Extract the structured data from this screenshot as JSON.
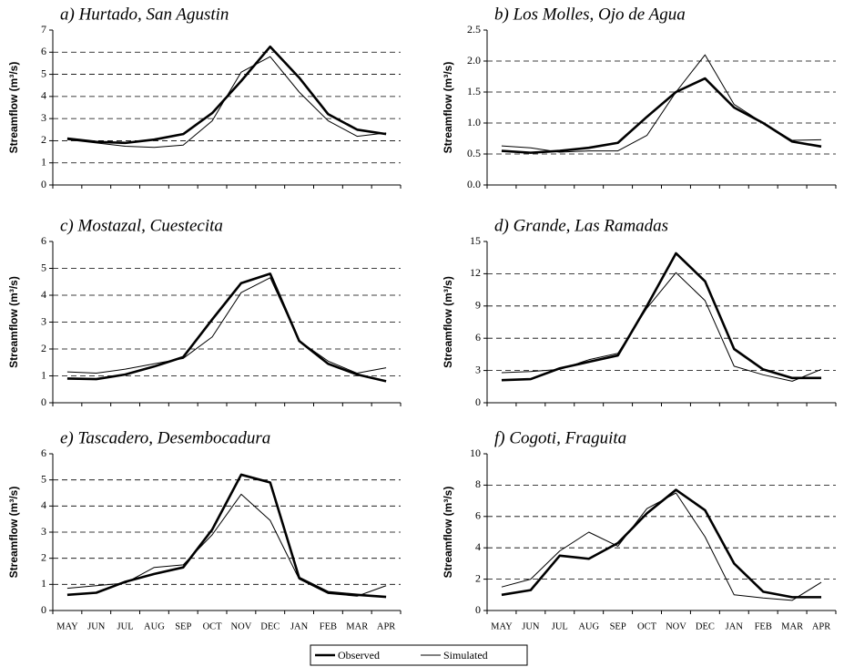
{
  "chart_data": [
    {
      "type": "line",
      "title": "a) Hurtado, San Agustin",
      "y_label": "Streamflow (m³/s)",
      "categories": [
        null,
        null,
        null,
        null,
        null,
        null,
        null,
        null,
        null,
        null,
        null,
        null
      ],
      "ylim": [
        0,
        7
      ],
      "yticks": [
        0,
        1,
        2,
        3,
        4,
        5,
        6,
        7
      ],
      "grid": true,
      "series": [
        {
          "name": "Observed",
          "color": "#000000",
          "values": [
            2.1,
            1.95,
            1.9,
            2.05,
            2.3,
            3.25,
            4.7,
            6.25,
            4.85,
            3.2,
            2.5,
            2.3
          ]
        },
        {
          "name": "Simulated",
          "color": "#000000",
          "values": [
            2.05,
            1.9,
            1.75,
            1.7,
            1.8,
            2.9,
            5.1,
            5.8,
            4.2,
            2.9,
            2.2,
            2.35
          ]
        }
      ]
    },
    {
      "type": "line",
      "title": "b) Los Molles, Ojo de Agua",
      "y_label": "Streamflow (m³/s)",
      "categories": [
        null,
        null,
        null,
        null,
        null,
        null,
        null,
        null,
        null,
        null,
        null,
        null
      ],
      "ylim": [
        0,
        2.5
      ],
      "yticks": [
        {
          "value": 0,
          "label": "0.0"
        },
        0.5,
        {
          "value": 1,
          "label": "1.0"
        },
        1.5,
        {
          "value": 2,
          "label": "2.0"
        },
        2.5
      ],
      "grid": true,
      "series": [
        {
          "name": "Observed",
          "color": "#000000",
          "values": [
            0.55,
            0.52,
            0.55,
            0.6,
            0.68,
            1.1,
            1.5,
            1.72,
            1.25,
            1.0,
            0.7,
            0.62
          ]
        },
        {
          "name": "Simulated",
          "color": "#000000",
          "values": [
            0.63,
            0.6,
            0.53,
            0.55,
            0.55,
            0.8,
            1.5,
            2.1,
            1.3,
            1.0,
            0.72,
            0.73
          ]
        }
      ]
    },
    {
      "type": "line",
      "title": "c) Mostazal, Cuestecita",
      "y_label": "Streamflow (m³/s)",
      "categories": [
        null,
        null,
        null,
        null,
        null,
        null,
        null,
        null,
        null,
        null,
        null,
        null
      ],
      "ylim": [
        0,
        6
      ],
      "yticks": [
        0,
        1,
        2,
        3,
        4,
        5,
        6
      ],
      "grid": true,
      "series": [
        {
          "name": "Observed",
          "color": "#000000",
          "values": [
            0.9,
            0.88,
            1.05,
            1.35,
            1.7,
            3.1,
            4.45,
            4.8,
            2.3,
            1.45,
            1.05,
            0.8
          ]
        },
        {
          "name": "Simulated",
          "color": "#000000",
          "values": [
            1.15,
            1.1,
            1.25,
            1.45,
            1.65,
            2.45,
            4.1,
            4.65,
            2.3,
            1.55,
            1.1,
            1.3
          ]
        }
      ]
    },
    {
      "type": "line",
      "title": "d) Grande, Las Ramadas",
      "y_label": "Streamflow (m³/s)",
      "categories": [
        null,
        null,
        null,
        null,
        null,
        null,
        null,
        null,
        null,
        null,
        null,
        null
      ],
      "ylim": [
        0,
        15
      ],
      "yticks": [
        0,
        3,
        6,
        9,
        12,
        15
      ],
      "grid": true,
      "series": [
        {
          "name": "Observed",
          "color": "#000000",
          "values": [
            2.1,
            2.2,
            3.2,
            3.8,
            4.4,
            9.0,
            13.9,
            11.3,
            5.0,
            3.1,
            2.3,
            2.3
          ]
        },
        {
          "name": "Simulated",
          "color": "#000000",
          "values": [
            2.8,
            2.9,
            3.1,
            4.0,
            4.6,
            8.8,
            12.1,
            9.5,
            3.4,
            2.6,
            2.0,
            3.1
          ]
        }
      ]
    },
    {
      "type": "line",
      "title": "e) Tascadero, Desembocadura",
      "y_label": "Streamflow (m³/s)",
      "categories": [
        "MAY",
        "JUN",
        "JUL",
        "AUG",
        "SEP",
        "OCT",
        "NOV",
        "DEC",
        "JAN",
        "FEB",
        "MAR",
        "APR"
      ],
      "ylim": [
        0,
        6
      ],
      "yticks": [
        0,
        1,
        2,
        3,
        4,
        5,
        6
      ],
      "grid": true,
      "series": [
        {
          "name": "Observed",
          "color": "#000000",
          "values": [
            0.6,
            0.68,
            1.1,
            1.4,
            1.65,
            3.1,
            5.2,
            4.9,
            1.25,
            0.7,
            0.6,
            0.52
          ]
        },
        {
          "name": "Simulated",
          "color": "#000000",
          "values": [
            0.85,
            0.95,
            1.05,
            1.65,
            1.75,
            2.9,
            4.45,
            3.45,
            1.2,
            0.65,
            0.55,
            0.95
          ]
        }
      ]
    },
    {
      "type": "line",
      "title": "f) Cogoti, Fraguita",
      "y_label": "Streamflow (m³/s)",
      "categories": [
        "MAY",
        "JUN",
        "JUL",
        "AUG",
        "SEP",
        "OCT",
        "NOV",
        "DEC",
        "JAN",
        "FEB",
        "MAR",
        "APR"
      ],
      "ylim": [
        0,
        10
      ],
      "yticks": [
        0,
        2,
        4,
        6,
        8,
        10
      ],
      "grid": true,
      "series": [
        {
          "name": "Observed",
          "color": "#000000",
          "values": [
            1.0,
            1.3,
            3.5,
            3.3,
            4.3,
            6.2,
            7.7,
            6.4,
            3.0,
            1.2,
            0.85,
            0.85
          ]
        },
        {
          "name": "Simulated",
          "color": "#000000",
          "values": [
            1.5,
            2.0,
            3.8,
            5.0,
            4.1,
            6.5,
            7.5,
            4.7,
            1.0,
            0.8,
            0.65,
            1.8
          ]
        }
      ]
    }
  ]
}
